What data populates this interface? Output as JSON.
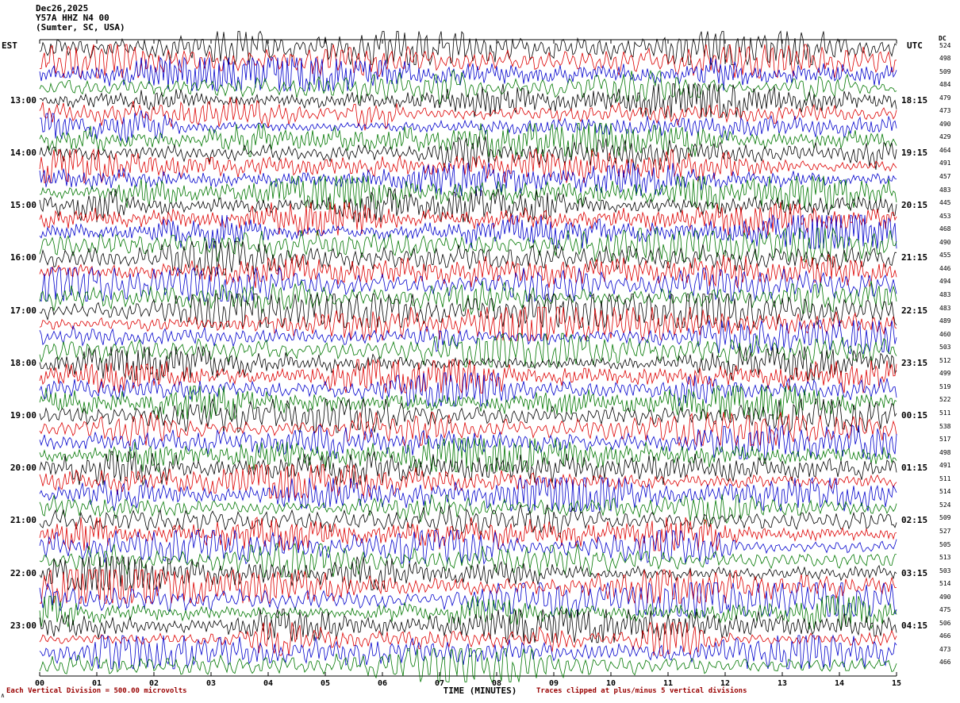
{
  "header": {
    "date": "Dec26,2025",
    "station": "Y57A HHZ N4 00",
    "location": "(Sumter, SC, USA)"
  },
  "axes": {
    "left_tz": "EST",
    "right_tz": "UTC",
    "dc_label": "DC",
    "x_title": "TIME (MINUTES)"
  },
  "footer": {
    "scale_note": "Each Vertical Division =  500.00 microvolts",
    "clip_note": "Traces clipped at plus/minus 5 vertical divisions",
    "corner_mark": "∧"
  },
  "chart_data": {
    "type": "line",
    "subtype": "helicorder-seismogram",
    "title": "Y57A HHZ N4 00 (Sumter, SC, USA) Dec26,2025",
    "xlabel": "TIME (MINUTES)",
    "x_range_minutes": [
      0,
      15
    ],
    "x_ticks": [
      "00",
      "01",
      "02",
      "03",
      "04",
      "05",
      "06",
      "07",
      "08",
      "09",
      "10",
      "11",
      "12",
      "13",
      "14",
      "15"
    ],
    "minutes_per_row": 15,
    "rows": 48,
    "traces_per_hour": 4,
    "color_cycle": [
      "#000000",
      "#dd0000",
      "#0000cc",
      "#007700"
    ],
    "hour_rows": [
      {
        "row": 4,
        "est": "13:00",
        "utc": "18:15"
      },
      {
        "row": 8,
        "est": "14:00",
        "utc": "19:15"
      },
      {
        "row": 12,
        "est": "15:00",
        "utc": "20:15"
      },
      {
        "row": 16,
        "est": "16:00",
        "utc": "21:15"
      },
      {
        "row": 20,
        "est": "17:00",
        "utc": "22:15"
      },
      {
        "row": 24,
        "est": "18:00",
        "utc": "23:15"
      },
      {
        "row": 28,
        "est": "19:00",
        "utc": "00:15"
      },
      {
        "row": 32,
        "est": "20:00",
        "utc": "01:15"
      },
      {
        "row": 36,
        "est": "21:00",
        "utc": "02:15"
      },
      {
        "row": 40,
        "est": "22:00",
        "utc": "03:15"
      },
      {
        "row": 44,
        "est": "23:00",
        "utc": "04:15"
      }
    ],
    "dc_values": [
      524,
      498,
      509,
      484,
      479,
      473,
      490,
      429,
      464,
      491,
      457,
      483,
      445,
      453,
      468,
      490,
      455,
      446,
      494,
      483,
      483,
      489,
      460,
      503,
      512,
      499,
      519,
      522,
      511,
      538,
      517,
      498,
      491,
      511,
      514,
      524,
      509,
      527,
      505,
      513,
      503,
      514,
      490,
      475,
      506,
      466,
      473,
      466
    ],
    "scale_note": "Each Vertical Division =  500.00 microvolts",
    "clip_note": "Traces clipped at plus/minus 5 vertical divisions"
  }
}
